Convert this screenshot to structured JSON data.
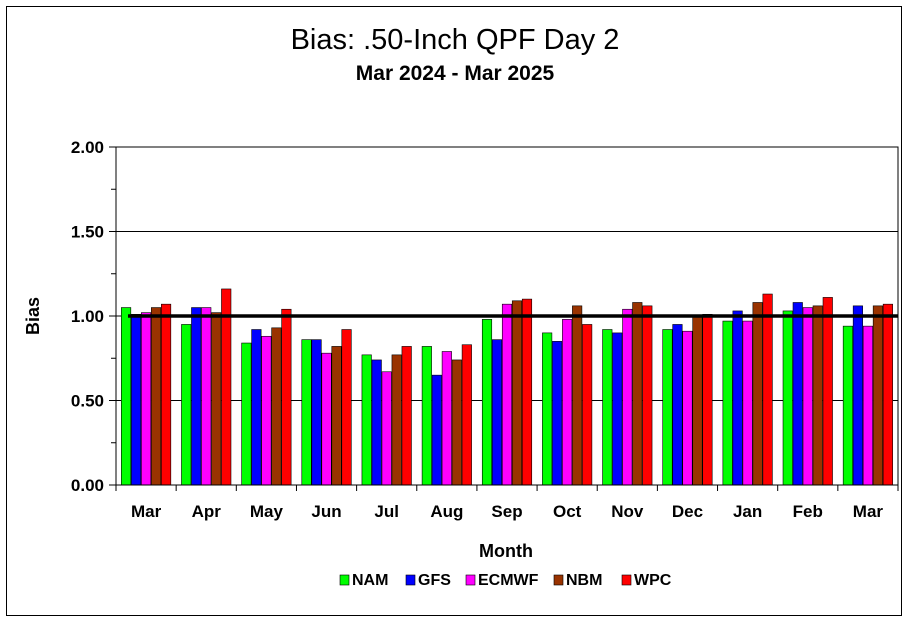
{
  "chart_data": {
    "type": "bar",
    "title": "Bias:  .50-Inch QPF Day 2",
    "subtitle": "Mar 2024 - Mar 2025",
    "xlabel": "Month",
    "ylabel": "Bias",
    "ylim": [
      0,
      2
    ],
    "yticks": [
      "0.00",
      "0.50",
      "1.00",
      "1.50",
      "2.00"
    ],
    "reference_line": 1.0,
    "grid": true,
    "legend_position": "bottom",
    "categories": [
      "Mar",
      "Apr",
      "May",
      "Jun",
      "Jul",
      "Aug",
      "Sep",
      "Oct",
      "Nov",
      "Dec",
      "Jan",
      "Feb",
      "Mar"
    ],
    "series": [
      {
        "name": "NAM",
        "color": "#00ff00",
        "values": [
          1.05,
          0.95,
          0.84,
          0.86,
          0.77,
          0.82,
          0.98,
          0.9,
          0.92,
          0.92,
          0.97,
          1.03,
          0.94
        ]
      },
      {
        "name": "GFS",
        "color": "#0000ff",
        "values": [
          1.01,
          1.05,
          0.92,
          0.86,
          0.74,
          0.65,
          0.86,
          0.85,
          0.9,
          0.95,
          1.03,
          1.08,
          1.06
        ]
      },
      {
        "name": "ECMWF",
        "color": "#ff00ff",
        "values": [
          1.02,
          1.05,
          0.88,
          0.78,
          0.67,
          0.79,
          1.07,
          0.98,
          1.04,
          0.91,
          0.97,
          1.05,
          0.94
        ]
      },
      {
        "name": "NBM",
        "color": "#993300",
        "values": [
          1.05,
          1.02,
          0.93,
          0.82,
          0.77,
          0.74,
          1.09,
          1.06,
          1.08,
          1.0,
          1.08,
          1.06,
          1.06
        ]
      },
      {
        "name": "WPC",
        "color": "#ff0000",
        "values": [
          1.07,
          1.16,
          1.04,
          0.92,
          0.82,
          0.83,
          1.1,
          0.95,
          1.06,
          1.01,
          1.13,
          1.11,
          1.07
        ]
      }
    ]
  }
}
